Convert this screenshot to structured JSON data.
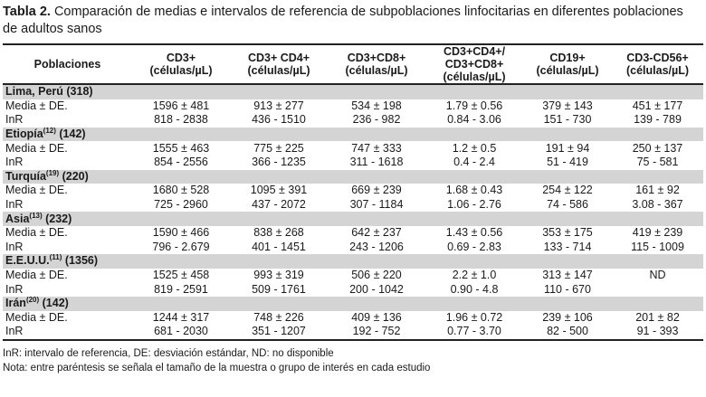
{
  "caption": {
    "label": "Tabla 2.",
    "text": "Comparación de medias e intervalos de referencia de subpoblaciones linfocitarias en diferentes poblaciones de adultos sanos"
  },
  "headers": [
    [
      "Poblaciones"
    ],
    [
      "CD3+",
      "(células/µL)"
    ],
    [
      "CD3+ CD4+",
      "(células/µL)"
    ],
    [
      "CD3+CD8+",
      "(células/µL)"
    ],
    [
      "CD3+CD4+/",
      "CD3+CD8+",
      "(células/µL)"
    ],
    [
      "CD19+",
      "(células/µL)"
    ],
    [
      "CD3-CD56+",
      "(células/µL)"
    ]
  ],
  "groups": [
    {
      "name": "Lima, Perú",
      "ref": "",
      "n": "(318)",
      "rows": [
        [
          "Media ± DE.",
          "1596 ± 481",
          "913 ± 277",
          "534 ± 198",
          "1.79 ± 0.56",
          "379 ± 143",
          "451 ± 177"
        ],
        [
          "InR",
          "818 - 2838",
          "436 - 1510",
          "236 - 982",
          "0.84 - 3.06",
          "151 - 730",
          "139 - 789"
        ]
      ]
    },
    {
      "name": "Etiopía",
      "ref": "(12)",
      "n": "(142)",
      "rows": [
        [
          "Media ± DE.",
          "1555 ± 463",
          "775 ± 225",
          "747 ± 333",
          "1.2 ± 0.5",
          "191 ± 94",
          "250 ± 137"
        ],
        [
          "InR",
          "854 - 2556",
          "366 - 1235",
          "311 - 1618",
          "0.4 - 2.4",
          "51 - 419",
          "75 - 581"
        ]
      ]
    },
    {
      "name": "Turquía",
      "ref": "(19)",
      "n": "(220)",
      "rows": [
        [
          "Media ± DE.",
          "1680 ± 528",
          "1095 ± 391",
          "669 ± 239",
          "1.68 ± 0.43",
          "254 ± 122",
          "161 ± 92"
        ],
        [
          "InR",
          "725 - 2960",
          "437 - 2072",
          "307 - 1184",
          "1.06 - 2.76",
          "74 - 586",
          "3.08 - 367"
        ]
      ]
    },
    {
      "name": "Asia",
      "ref": "(13)",
      "n": "(232)",
      "rows": [
        [
          "Media ± DE.",
          "1590 ± 466",
          "838 ± 268",
          "642 ± 237",
          "1.43 ± 0.56",
          "353 ± 175",
          "419 ± 239"
        ],
        [
          "InR",
          "796 - 2.679",
          "401 - 1451",
          "243 - 1206",
          "0.69 - 2.83",
          "133 - 714",
          "115 - 1009"
        ]
      ]
    },
    {
      "name": "E.E.U.U.",
      "ref": "(11)",
      "n": "(1356)",
      "rows": [
        [
          "Media ± DE.",
          "1525 ± 458",
          "993 ± 319",
          "506 ± 220",
          "2.2 ± 1.0",
          "313 ± 147",
          "ND"
        ],
        [
          "InR",
          "819 - 2591",
          "509 - 1761",
          "200 - 1042",
          "0.90 - 4.8",
          "110 - 670",
          ""
        ]
      ]
    },
    {
      "name": "Irán",
      "ref": "(20)",
      "n": "(142)",
      "rows": [
        [
          "Media ± DE.",
          "1244 ± 317",
          "748 ± 226",
          "409 ± 136",
          "1.96 ± 0.72",
          "239 ± 106",
          "201 ± 82"
        ],
        [
          "InR",
          "681 - 2030",
          "351 - 1207",
          "192 - 752",
          "0.77 - 3.70",
          "82 - 500",
          "91 - 393"
        ]
      ]
    }
  ],
  "notes": [
    "InR: intervalo de referencia, DE: desviación estándar, ND: no disponible",
    "Nota: entre paréntesis se señala el tamaño de la muestra o grupo de interés en cada estudio"
  ]
}
